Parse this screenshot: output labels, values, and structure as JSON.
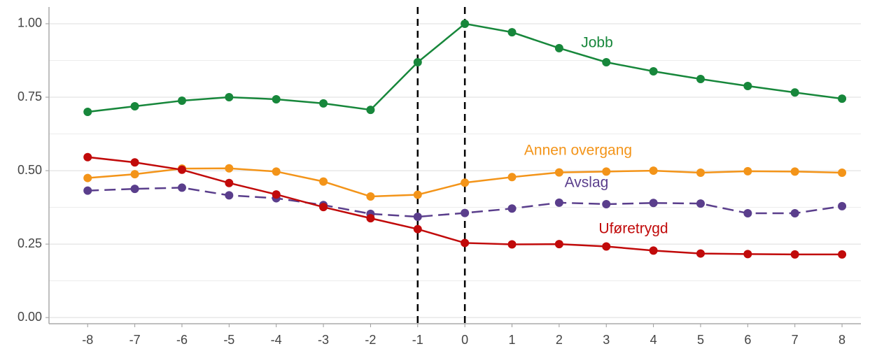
{
  "chart_data": {
    "type": "line",
    "x": [
      -8,
      -7,
      -6,
      -5,
      -4,
      -3,
      -2,
      -1,
      0,
      1,
      2,
      3,
      4,
      5,
      6,
      7,
      8
    ],
    "series": [
      {
        "name": "Jobb",
        "color": "#17873b",
        "line_style": "solid",
        "values": [
          0.7,
          0.719,
          0.738,
          0.75,
          0.743,
          0.729,
          0.707,
          0.869,
          1.0,
          0.971,
          0.917,
          0.869,
          0.838,
          0.812,
          0.788,
          0.766,
          0.745
        ]
      },
      {
        "name": "Annen overgang",
        "color": "#f39419",
        "line_style": "solid",
        "values": [
          0.475,
          0.488,
          0.507,
          0.508,
          0.497,
          0.463,
          0.412,
          0.418,
          0.459,
          0.478,
          0.494,
          0.497,
          0.5,
          0.493,
          0.498,
          0.497,
          0.493
        ]
      },
      {
        "name": "Avslag",
        "color": "#5a3e8c",
        "line_style": "dashed",
        "values": [
          0.432,
          0.438,
          0.442,
          0.416,
          0.406,
          0.383,
          0.353,
          0.343,
          0.356,
          0.371,
          0.391,
          0.386,
          0.39,
          0.388,
          0.355,
          0.355,
          0.379
        ]
      },
      {
        "name": "Uføretrygd",
        "color": "#c10a0a",
        "line_style": "solid",
        "values": [
          0.546,
          0.528,
          0.503,
          0.458,
          0.419,
          0.376,
          0.338,
          0.301,
          0.254,
          0.249,
          0.25,
          0.242,
          0.228,
          0.218,
          0.216,
          0.215,
          0.215
        ]
      }
    ],
    "xlim": [
      -8.82,
      8.4
    ],
    "xticks": [
      -8,
      -7,
      -6,
      -5,
      -4,
      -3,
      -2,
      -1,
      0,
      1,
      2,
      3,
      4,
      5,
      6,
      7,
      8
    ],
    "ylim": [
      -0.021,
      1.057
    ],
    "yticks": [
      {
        "value": 0,
        "label": "0.00"
      },
      {
        "value": 0.25,
        "label": "0.25"
      },
      {
        "value": 0.5,
        "label": "0.50"
      },
      {
        "value": 0.75,
        "label": "0.75"
      },
      {
        "value": 1,
        "label": "1.00"
      }
    ],
    "minor_yticks": [
      0.125,
      0.375,
      0.625,
      0.875
    ],
    "vlines": [
      -1,
      0
    ],
    "grid": true
  }
}
